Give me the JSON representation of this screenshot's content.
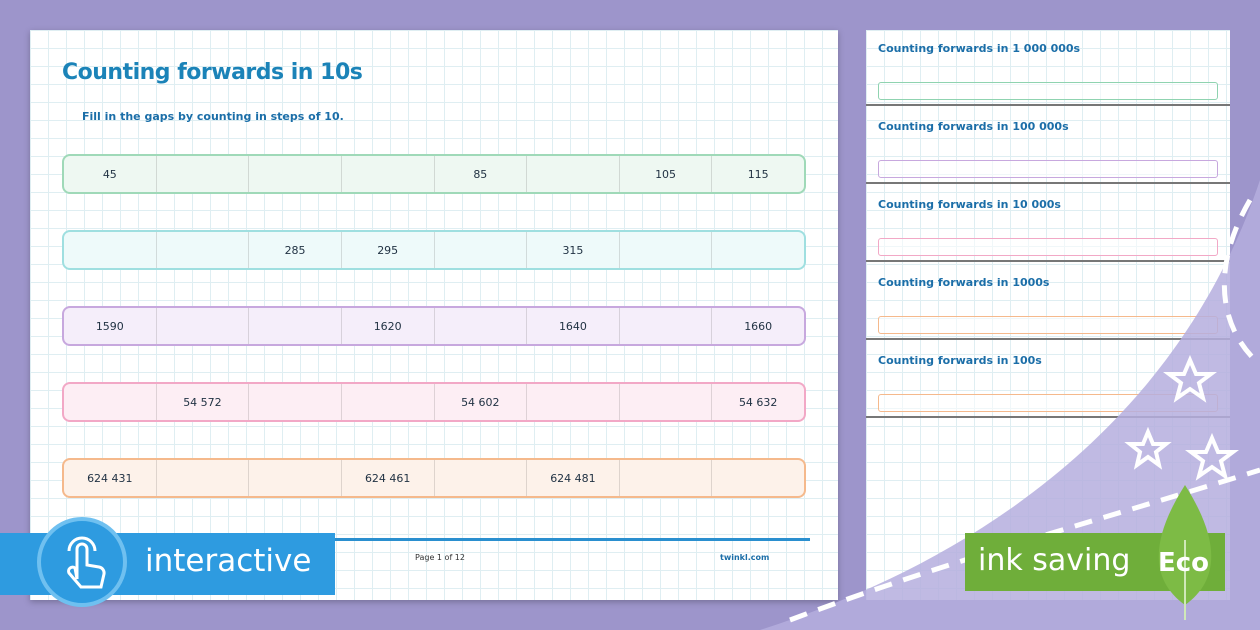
{
  "sheet": {
    "title": "Counting forwards in 10s",
    "instruction": "Fill in the gaps by counting in steps of 10.",
    "rows": [
      {
        "cells": [
          "45",
          null,
          null,
          null,
          "85",
          null,
          "105",
          "115"
        ]
      },
      {
        "cells": [
          null,
          null,
          "285",
          "295",
          null,
          "315",
          null,
          null
        ]
      },
      {
        "cells": [
          "1590",
          null,
          null,
          "1620",
          null,
          "1640",
          null,
          "1660"
        ]
      },
      {
        "cells": [
          null,
          "54 572",
          null,
          null,
          "54 602",
          null,
          null,
          "54 632"
        ]
      },
      {
        "cells": [
          "624 431",
          null,
          null,
          "624 461",
          null,
          "624 481",
          null,
          null
        ]
      }
    ],
    "footer": {
      "page": "Page 1 of 12",
      "site": "twinkl.com"
    }
  },
  "thumbnails": [
    {
      "title": "Counting forwards in 1 000 000s"
    },
    {
      "title": "Counting forwards in 100 000s"
    },
    {
      "title": "Counting forwards in 10 000s"
    },
    {
      "title": "Counting forwards in 1000s"
    },
    {
      "title": "Counting forwards in 100s"
    }
  ],
  "badges": {
    "interactive": "interactive",
    "ink_saving": "ink saving",
    "eco": "Eco"
  }
}
